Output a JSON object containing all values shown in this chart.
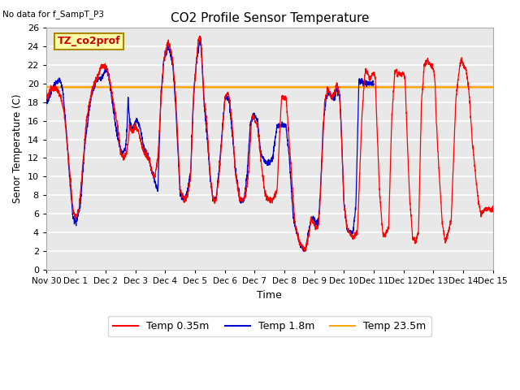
{
  "title": "CO2 Profile Sensor Temperature",
  "no_data_text": "No data for f_SampT_P3",
  "box_label": "TZ_co2prof",
  "ylabel": "Senor Temperature (C)",
  "xlabel": "Time",
  "ylim": [
    0,
    26
  ],
  "flat_line_value": 19.6,
  "flat_line_color": "#FFA500",
  "red_color": "#FF0000",
  "blue_color": "#0000CC",
  "bg_color": "#E8E8E8",
  "grid_color": "#FFFFFF",
  "legend_labels": [
    "Temp 0.35m",
    "Temp 1.8m",
    "Temp 23.5m"
  ],
  "x_tick_labels": [
    "Nov 30",
    "Dec 1",
    "Dec 2",
    "Dec 3",
    "Dec 4",
    "Dec 5",
    "Dec 6",
    "Dec 7",
    "Dec 8",
    "Dec 9",
    "Dec 10",
    "Dec 11",
    "Dec 12",
    "Dec 13",
    "Dec 14",
    "Dec 15"
  ],
  "x_tick_positions": [
    0,
    1,
    2,
    3,
    4,
    5,
    6,
    7,
    8,
    9,
    10,
    11,
    12,
    13,
    14,
    15
  ],
  "num_points": 3000
}
